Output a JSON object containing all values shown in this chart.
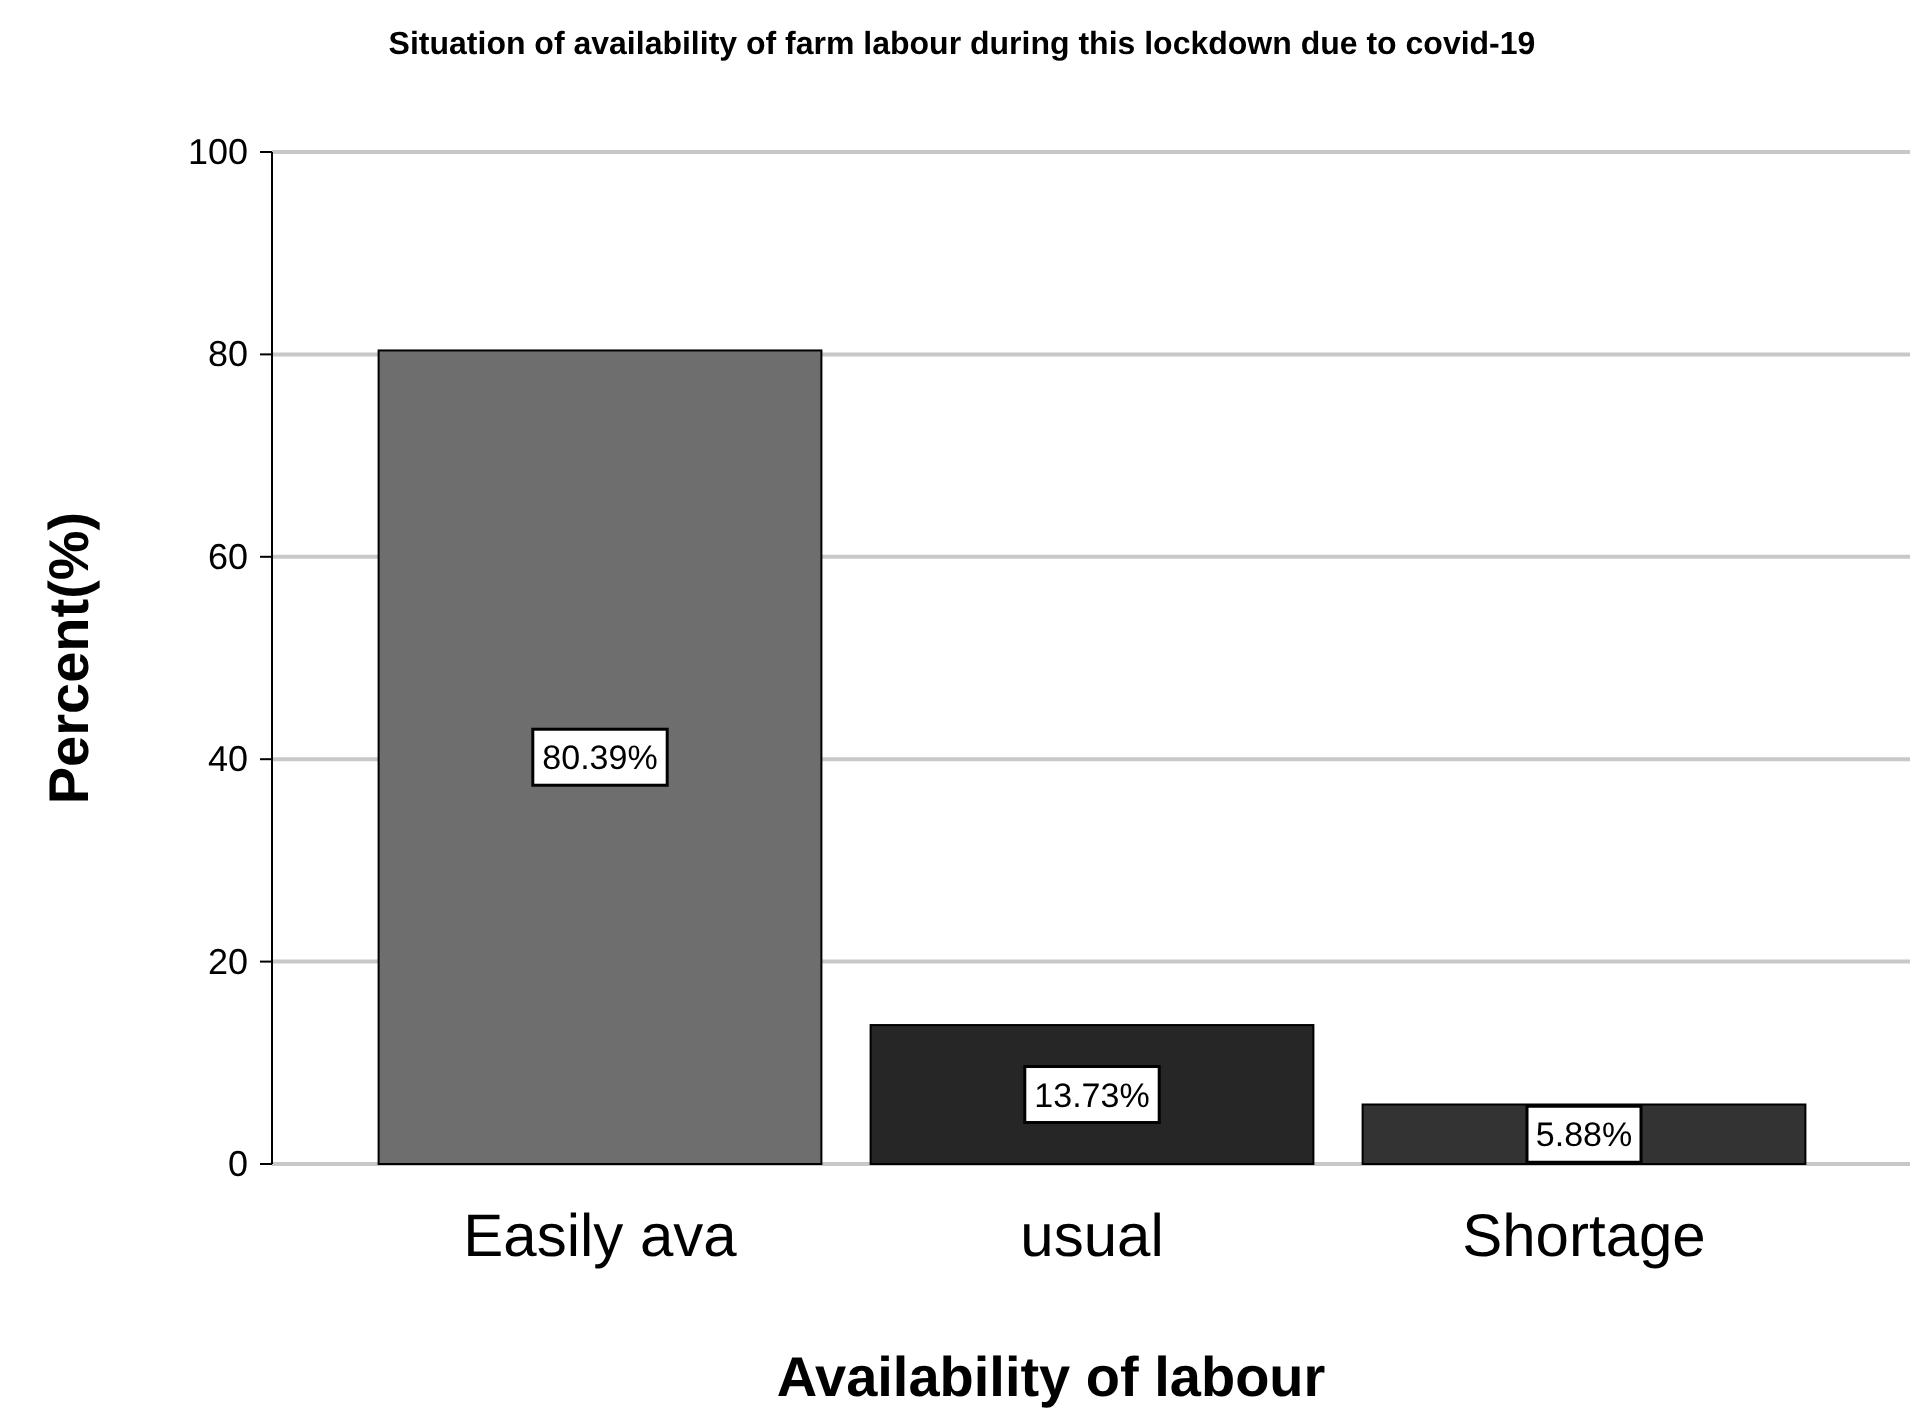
{
  "chart_data": {
    "type": "bar",
    "title": "Situation of availability of farm labour during this lockdown due to covid-19",
    "xlabel": "Availability of labour",
    "ylabel": "Percent(%)",
    "categories": [
      "Easily ava",
      "usual",
      "Shortage"
    ],
    "values": [
      80.39,
      13.73,
      5.88
    ],
    "value_labels": [
      "80.39%",
      "13.73%",
      "5.88%"
    ],
    "colors": [
      "#6e6e6e",
      "#262626",
      "#333333"
    ],
    "ylim": [
      0,
      100
    ],
    "yticks": [
      0,
      20,
      40,
      60,
      80,
      100
    ],
    "grid": "y"
  }
}
